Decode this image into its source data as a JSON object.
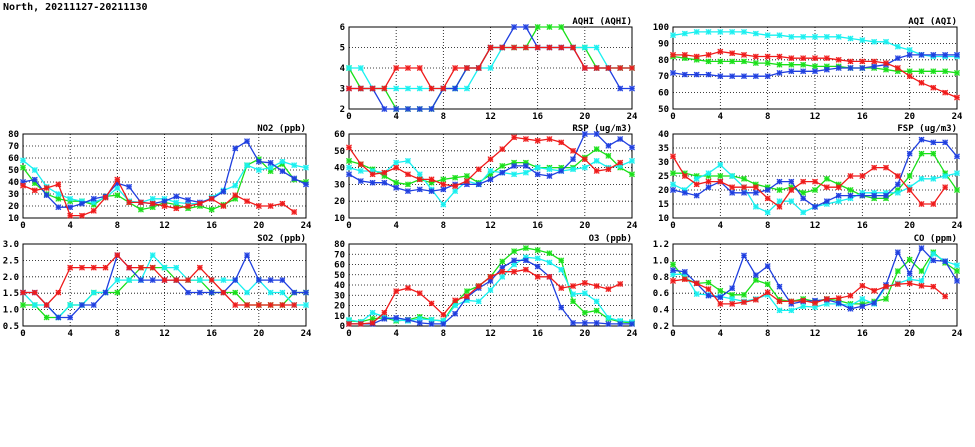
{
  "page_title": "North, 20211127-20211130",
  "colors": {
    "blue": "#1f3fe0",
    "cyan": "#19f0f0",
    "green": "#19e019",
    "red": "#ef1a1a"
  },
  "chart_data": [
    {
      "type": "line",
      "title": "AQHI (AQHI)",
      "ylim": [
        2,
        6
      ],
      "yticks": [
        "2",
        "3",
        "4",
        "5",
        "6"
      ],
      "xlim": [
        0,
        24
      ],
      "xticks": [
        "0",
        "4",
        "8",
        "12",
        "16",
        "20",
        "24"
      ],
      "grid": true,
      "series": [
        {
          "color": "green",
          "values": [
            4,
            3,
            3,
            3,
            2,
            2,
            2,
            2,
            3,
            3,
            4,
            4,
            5,
            5,
            5,
            5,
            6,
            6,
            6,
            5,
            5,
            4,
            4,
            4,
            4
          ]
        },
        {
          "color": "cyan",
          "values": [
            4,
            4,
            3,
            3,
            3,
            3,
            3,
            3,
            3,
            3,
            3,
            4,
            4,
            5,
            5,
            5,
            5,
            5,
            5,
            5,
            5,
            5,
            4,
            4,
            4
          ]
        },
        {
          "color": "blue",
          "values": [
            3,
            3,
            3,
            2,
            2,
            2,
            2,
            2,
            3,
            3,
            4,
            4,
            5,
            5,
            6,
            6,
            5,
            5,
            5,
            5,
            4,
            4,
            4,
            3,
            3
          ]
        },
        {
          "color": "red",
          "values": [
            3,
            3,
            3,
            3,
            4,
            4,
            4,
            3,
            3,
            4,
            4,
            4,
            5,
            5,
            5,
            5,
            5,
            5,
            5,
            5,
            4,
            4,
            4,
            4,
            4
          ]
        }
      ]
    },
    {
      "type": "line",
      "title": "AQI (AQI)",
      "ylim": [
        50,
        100
      ],
      "yticks": [
        "50",
        "60",
        "70",
        "80",
        "90",
        "100"
      ],
      "xlim": [
        0,
        24
      ],
      "xticks": [
        "0",
        "4",
        "8",
        "12",
        "16",
        "20",
        "24"
      ],
      "grid": true,
      "series": [
        {
          "color": "green",
          "values": [
            82,
            81,
            80,
            79,
            79,
            79,
            79,
            78,
            78,
            77,
            77,
            77,
            76,
            76,
            76,
            75,
            75,
            75,
            74,
            73,
            73,
            73,
            73,
            73,
            72
          ]
        },
        {
          "color": "cyan",
          "values": [
            95,
            96,
            97,
            97,
            97,
            97,
            97,
            96,
            95,
            95,
            94,
            94,
            94,
            94,
            94,
            93,
            92,
            91,
            91,
            88,
            86,
            83,
            82,
            82,
            82
          ]
        },
        {
          "color": "blue",
          "values": [
            72,
            71,
            71,
            71,
            70,
            70,
            70,
            70,
            70,
            72,
            73,
            73,
            73,
            74,
            75,
            75,
            75,
            76,
            77,
            81,
            83,
            83,
            83,
            83,
            83
          ]
        },
        {
          "color": "red",
          "values": [
            83,
            83,
            82,
            83,
            85,
            84,
            83,
            82,
            82,
            82,
            81,
            81,
            81,
            81,
            80,
            79,
            79,
            79,
            78,
            75,
            70,
            66,
            63,
            60,
            57
          ]
        }
      ]
    },
    {
      "type": "line",
      "title": "NO2 (ppb)",
      "ylim": [
        10,
        80
      ],
      "yticks": [
        "10",
        "20",
        "30",
        "40",
        "50",
        "60",
        "70",
        "80"
      ],
      "xlim": [
        0,
        24
      ],
      "xticks": [
        "0",
        "4",
        "8",
        "12",
        "16",
        "20",
        "24"
      ],
      "grid": true,
      "series": [
        {
          "color": "green",
          "values": [
            52,
            39,
            30,
            26,
            24,
            24,
            21,
            28,
            29,
            23,
            17,
            19,
            23,
            21,
            18,
            20,
            17,
            21,
            26,
            54,
            59,
            49,
            55,
            42,
            40
          ]
        },
        {
          "color": "cyan",
          "values": [
            58,
            50,
            36,
            30,
            26,
            24,
            23,
            27,
            35,
            24,
            23,
            26,
            26,
            23,
            22,
            22,
            27,
            33,
            37,
            54,
            50,
            52,
            57,
            54,
            52
          ]
        },
        {
          "color": "blue",
          "values": [
            40,
            42,
            29,
            19,
            19,
            22,
            26,
            28,
            39,
            36,
            23,
            22,
            24,
            28,
            25,
            23,
            26,
            32,
            68,
            74,
            57,
            56,
            49,
            43,
            38
          ]
        },
        {
          "color": "red",
          "values": [
            37,
            33,
            35,
            38,
            12,
            12,
            16,
            27,
            42,
            23,
            23,
            22,
            20,
            18,
            20,
            22,
            26,
            20,
            29,
            24,
            20,
            20,
            22,
            15,
            null
          ]
        }
      ]
    },
    {
      "type": "line",
      "title": "RSP (ug/m3)",
      "ylim": [
        10,
        60
      ],
      "yticks": [
        "10",
        "20",
        "30",
        "40",
        "50",
        "60"
      ],
      "xlim": [
        0,
        24
      ],
      "xticks": [
        "0",
        "4",
        "8",
        "12",
        "16",
        "20",
        "24"
      ],
      "grid": true,
      "series": [
        {
          "color": "green",
          "values": [
            44,
            42,
            39,
            35,
            31,
            30,
            33,
            31,
            33,
            34,
            35,
            31,
            36,
            41,
            43,
            43,
            40,
            40,
            40,
            40,
            46,
            51,
            47,
            40,
            36
          ]
        },
        {
          "color": "cyan",
          "values": [
            40,
            38,
            38,
            37,
            43,
            44,
            36,
            27,
            18,
            26,
            32,
            30,
            38,
            37,
            36,
            37,
            40,
            39,
            38,
            39,
            40,
            44,
            40,
            41,
            44
          ]
        },
        {
          "color": "blue",
          "values": [
            36,
            32,
            31,
            31,
            28,
            26,
            27,
            26,
            27,
            30,
            30,
            30,
            33,
            37,
            41,
            41,
            36,
            35,
            38,
            45,
            60,
            60,
            53,
            57,
            52
          ]
        },
        {
          "color": "red",
          "values": [
            52,
            42,
            36,
            37,
            40,
            36,
            33,
            33,
            30,
            29,
            32,
            39,
            45,
            51,
            58,
            57,
            56,
            57,
            55,
            50,
            45,
            38,
            39,
            43,
            null
          ]
        }
      ]
    },
    {
      "type": "line",
      "title": "FSP (ug/m3)",
      "ylim": [
        10,
        40
      ],
      "yticks": [
        "10",
        "15",
        "20",
        "25",
        "30",
        "35",
        "40"
      ],
      "xlim": [
        0,
        24
      ],
      "xticks": [
        "0",
        "4",
        "8",
        "12",
        "16",
        "20",
        "24"
      ],
      "grid": true,
      "series": [
        {
          "color": "green",
          "values": [
            26,
            26,
            25,
            25,
            25,
            25,
            24,
            22,
            21,
            20,
            21,
            19,
            20,
            24,
            22,
            20,
            18,
            17,
            17,
            20,
            25,
            33,
            33,
            26,
            20
          ]
        },
        {
          "color": "cyan",
          "values": [
            22,
            20,
            24,
            26,
            29,
            25,
            21,
            14,
            12,
            16,
            16,
            12,
            14,
            15,
            16,
            17,
            19,
            19,
            19,
            19,
            21,
            24,
            24,
            25,
            26
          ]
        },
        {
          "color": "blue",
          "values": [
            20,
            19,
            18,
            21,
            23,
            19,
            19,
            19,
            20,
            23,
            23,
            17,
            14,
            16,
            18,
            18,
            18,
            18,
            18,
            22,
            33,
            38,
            37,
            37,
            32
          ]
        },
        {
          "color": "red",
          "values": [
            32,
            25,
            22,
            23,
            23,
            21,
            21,
            21,
            17,
            14,
            20,
            23,
            23,
            21,
            21,
            25,
            25,
            28,
            28,
            25,
            20,
            15,
            15,
            21,
            null
          ]
        }
      ]
    },
    {
      "type": "line",
      "title": "SO2 (ppb)",
      "ylim": [
        0.5,
        3.0
      ],
      "yticks": [
        "0.5",
        "1.0",
        "1.5",
        "2.0",
        "2.5",
        "3.0"
      ],
      "xlim": [
        0,
        24
      ],
      "xticks": [
        "0",
        "4",
        "8",
        "12",
        "16",
        "20",
        "24"
      ],
      "grid": true,
      "series": [
        {
          "color": "green",
          "values": [
            1.14,
            1.14,
            0.76,
            0.76,
            1.14,
            1.14,
            1.52,
            1.52,
            1.52,
            1.9,
            2.28,
            2.28,
            2.28,
            1.9,
            1.9,
            1.9,
            1.52,
            1.52,
            1.52,
            1.14,
            1.14,
            1.14,
            1.14,
            1.52,
            1.52
          ]
        },
        {
          "color": "cyan",
          "values": [
            1.52,
            1.14,
            1.14,
            0.76,
            1.14,
            1.14,
            1.52,
            1.52,
            1.9,
            1.9,
            1.9,
            2.66,
            2.28,
            2.28,
            1.9,
            1.9,
            1.9,
            1.9,
            1.9,
            1.52,
            1.9,
            1.52,
            1.52,
            1.14,
            1.14
          ]
        },
        {
          "color": "blue",
          "values": [
            1.52,
            1.52,
            1.14,
            0.76,
            0.76,
            1.14,
            1.14,
            1.52,
            2.66,
            2.28,
            1.9,
            1.9,
            1.9,
            1.9,
            1.52,
            1.52,
            1.52,
            1.52,
            1.9,
            2.66,
            1.9,
            1.9,
            1.9,
            1.52,
            1.52
          ]
        },
        {
          "color": "red",
          "values": [
            1.52,
            1.52,
            1.14,
            1.52,
            2.28,
            2.28,
            2.28,
            2.28,
            2.66,
            2.28,
            2.28,
            2.28,
            1.9,
            1.9,
            1.9,
            2.28,
            1.9,
            1.52,
            1.14,
            1.14,
            1.14,
            1.14,
            1.14,
            1.14,
            null
          ]
        }
      ]
    },
    {
      "type": "line",
      "title": "O3 (ppb)",
      "ylim": [
        0,
        80
      ],
      "yticks": [
        "0",
        "10",
        "20",
        "30",
        "40",
        "50",
        "60",
        "70",
        "80"
      ],
      "xlim": [
        0,
        24
      ],
      "xticks": [
        "0",
        "4",
        "8",
        "12",
        "16",
        "20",
        "24"
      ],
      "grid": true,
      "series": [
        {
          "color": "green",
          "values": [
            5,
            4,
            7,
            8,
            5,
            6,
            9,
            6,
            5,
            22,
            34,
            39,
            48,
            63,
            73,
            76,
            74,
            71,
            64,
            24,
            13,
            15,
            7,
            4,
            3
          ]
        },
        {
          "color": "cyan",
          "values": [
            6,
            4,
            13,
            9,
            6,
            5,
            7,
            6,
            5,
            20,
            25,
            24,
            35,
            48,
            60,
            67,
            66,
            62,
            55,
            31,
            32,
            24,
            8,
            5,
            4
          ]
        },
        {
          "color": "blue",
          "values": [
            2,
            2,
            2,
            7,
            8,
            6,
            3,
            2,
            2,
            12,
            28,
            37,
            44,
            57,
            64,
            64,
            58,
            48,
            18,
            3,
            3,
            3,
            2,
            2,
            2
          ]
        },
        {
          "color": "red",
          "values": [
            2,
            2,
            3,
            13,
            34,
            37,
            32,
            22,
            11,
            25,
            29,
            39,
            48,
            53,
            53,
            55,
            48,
            48,
            37,
            39,
            42,
            39,
            36,
            41,
            null
          ]
        }
      ]
    },
    {
      "type": "line",
      "title": "CO (ppm)",
      "ylim": [
        0.2,
        1.2
      ],
      "yticks": [
        "0.2",
        "0.4",
        "0.6",
        "0.8",
        "1.0",
        "1.2"
      ],
      "xlim": [
        0,
        24
      ],
      "xticks": [
        "0",
        "4",
        "8",
        "12",
        "16",
        "20",
        "24"
      ],
      "grid": true,
      "series": [
        {
          "color": "green",
          "values": [
            0.95,
            0.78,
            0.72,
            0.73,
            0.63,
            0.58,
            0.58,
            0.76,
            0.71,
            0.52,
            0.5,
            0.53,
            0.5,
            0.53,
            0.51,
            0.47,
            0.47,
            0.5,
            0.53,
            0.87,
            1.01,
            0.87,
            1.1,
            0.97,
            0.87
          ]
        },
        {
          "color": "cyan",
          "values": [
            0.83,
            0.83,
            0.59,
            0.58,
            0.56,
            0.53,
            0.5,
            0.53,
            0.58,
            0.39,
            0.39,
            0.44,
            0.43,
            0.47,
            0.47,
            0.45,
            0.53,
            0.47,
            0.68,
            0.72,
            0.77,
            0.75,
            1.08,
            0.99,
            0.94
          ]
        },
        {
          "color": "blue",
          "values": [
            0.88,
            0.86,
            0.72,
            0.57,
            0.55,
            0.66,
            1.06,
            0.82,
            0.93,
            0.68,
            0.47,
            0.5,
            0.51,
            0.52,
            0.48,
            0.41,
            0.44,
            0.48,
            0.7,
            1.1,
            0.84,
            1.15,
            1.0,
            0.99,
            0.75
          ]
        },
        {
          "color": "red",
          "values": [
            0.75,
            0.77,
            0.72,
            0.65,
            0.47,
            0.47,
            0.49,
            0.52,
            0.61,
            0.5,
            0.5,
            0.51,
            0.48,
            0.53,
            0.54,
            0.57,
            0.69,
            0.63,
            0.68,
            0.71,
            0.72,
            0.69,
            0.68,
            0.56,
            null
          ]
        }
      ]
    }
  ]
}
